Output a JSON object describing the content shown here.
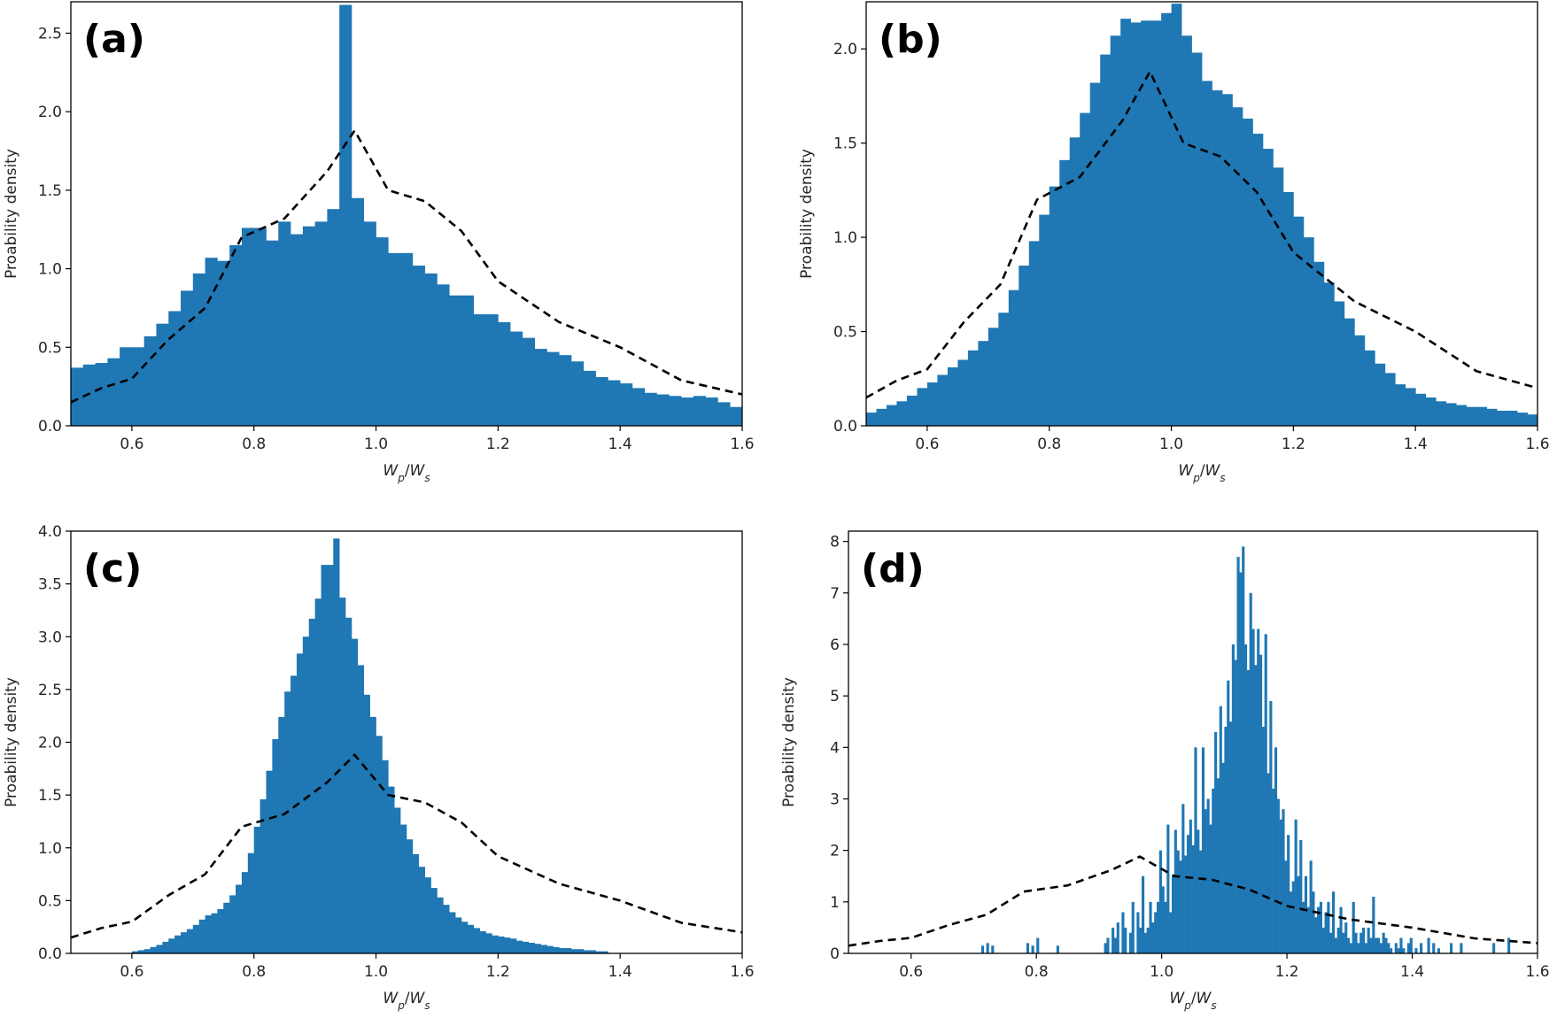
{
  "colors": {
    "bar": "#1f77b4",
    "reference_line": "#000000",
    "axes": "#000000",
    "text": "#262626"
  },
  "chart_data": [
    {
      "panel": "(a)",
      "type": "bar",
      "histogram": true,
      "xlabel": "W_p/W_s",
      "ylabel": "Proability density",
      "xlim": [
        0.5,
        1.6
      ],
      "ylim": [
        0,
        2.7
      ],
      "xticks": [
        "0.6",
        "0.8",
        "1.0",
        "1.2",
        "1.4",
        "1.6"
      ],
      "yticks": [
        "0.0",
        "0.5",
        "1.0",
        "1.5",
        "2.0",
        "2.5"
      ],
      "grid": false,
      "bin_edges_start": 0.5,
      "bin_width": 0.02,
      "values": [
        0.37,
        0.39,
        0.4,
        0.43,
        0.5,
        0.5,
        0.57,
        0.65,
        0.73,
        0.86,
        0.97,
        1.07,
        1.05,
        1.15,
        1.26,
        1.26,
        1.18,
        1.3,
        1.22,
        1.27,
        1.3,
        1.38,
        2.68,
        1.45,
        1.3,
        1.2,
        1.1,
        1.1,
        1.02,
        0.97,
        0.9,
        0.83,
        0.83,
        0.71,
        0.71,
        0.66,
        0.6,
        0.56,
        0.49,
        0.47,
        0.45,
        0.41,
        0.35,
        0.31,
        0.29,
        0.27,
        0.24,
        0.21,
        0.2,
        0.19,
        0.18,
        0.19,
        0.18,
        0.15,
        0.12
      ],
      "reference_curve": {
        "style": "dashed",
        "x": [
          0.5,
          0.55,
          0.6,
          0.66,
          0.72,
          0.78,
          0.85,
          0.92,
          0.965,
          1.02,
          1.08,
          1.14,
          1.2,
          1.3,
          1.4,
          1.5,
          1.6
        ],
        "y": [
          0.15,
          0.24,
          0.3,
          0.55,
          0.75,
          1.2,
          1.32,
          1.62,
          1.88,
          1.5,
          1.43,
          1.24,
          0.92,
          0.66,
          0.5,
          0.29,
          0.2
        ]
      }
    },
    {
      "panel": "(b)",
      "type": "bar",
      "histogram": true,
      "xlabel": "W_p/W_s",
      "ylabel": "Proability density",
      "xlim": [
        0.5,
        1.6
      ],
      "ylim": [
        0,
        2.25
      ],
      "xticks": [
        "0.6",
        "0.8",
        "1.0",
        "1.2",
        "1.4",
        "1.6"
      ],
      "yticks": [
        "0.0",
        "0.5",
        "1.0",
        "1.5",
        "2.0"
      ],
      "grid": false,
      "bin_edges_start": 0.5,
      "bin_width": 0.01667,
      "values": [
        0.07,
        0.09,
        0.11,
        0.13,
        0.16,
        0.2,
        0.23,
        0.27,
        0.31,
        0.35,
        0.4,
        0.45,
        0.52,
        0.6,
        0.72,
        0.85,
        0.98,
        1.12,
        1.27,
        1.41,
        1.53,
        1.66,
        1.82,
        1.97,
        2.07,
        2.16,
        2.14,
        2.15,
        2.15,
        2.19,
        2.24,
        2.07,
        1.98,
        1.83,
        1.78,
        1.76,
        1.69,
        1.63,
        1.55,
        1.47,
        1.37,
        1.24,
        1.11,
        1.0,
        0.87,
        0.76,
        0.66,
        0.57,
        0.48,
        0.4,
        0.33,
        0.28,
        0.22,
        0.2,
        0.17,
        0.15,
        0.13,
        0.12,
        0.11,
        0.1,
        0.1,
        0.09,
        0.08,
        0.08,
        0.07,
        0.06
      ],
      "reference_curve": {
        "style": "dashed",
        "x": [
          0.5,
          0.55,
          0.6,
          0.66,
          0.72,
          0.78,
          0.85,
          0.92,
          0.965,
          1.02,
          1.08,
          1.14,
          1.2,
          1.3,
          1.4,
          1.5,
          1.6
        ],
        "y": [
          0.15,
          0.24,
          0.3,
          0.55,
          0.75,
          1.2,
          1.32,
          1.62,
          1.88,
          1.5,
          1.43,
          1.24,
          0.92,
          0.66,
          0.5,
          0.29,
          0.2
        ]
      }
    },
    {
      "panel": "(c)",
      "type": "bar",
      "histogram": true,
      "xlabel": "W_p/W_s",
      "ylabel": "Proability density",
      "xlim": [
        0.5,
        1.6
      ],
      "ylim": [
        0,
        4.0
      ],
      "xticks": [
        "0.6",
        "0.8",
        "1.0",
        "1.2",
        "1.4",
        "1.6"
      ],
      "yticks": [
        "0.0",
        "0.5",
        "1.0",
        "1.5",
        "2.0",
        "2.5",
        "3.0",
        "3.5",
        "4.0"
      ],
      "grid": false,
      "bin_edges_start": 0.6,
      "bin_width": 0.01,
      "values": [
        0.02,
        0.03,
        0.04,
        0.06,
        0.08,
        0.11,
        0.14,
        0.17,
        0.2,
        0.23,
        0.27,
        0.32,
        0.36,
        0.38,
        0.42,
        0.48,
        0.55,
        0.65,
        0.77,
        0.95,
        1.2,
        1.46,
        1.73,
        2.03,
        2.24,
        2.48,
        2.63,
        2.84,
        3.0,
        3.17,
        3.36,
        3.68,
        3.68,
        3.93,
        3.37,
        3.18,
        2.98,
        2.73,
        2.45,
        2.24,
        2.06,
        1.83,
        1.58,
        1.38,
        1.22,
        1.08,
        0.94,
        0.82,
        0.72,
        0.62,
        0.53,
        0.46,
        0.39,
        0.34,
        0.3,
        0.27,
        0.24,
        0.21,
        0.19,
        0.17,
        0.16,
        0.15,
        0.14,
        0.12,
        0.11,
        0.1,
        0.09,
        0.08,
        0.07,
        0.06,
        0.05,
        0.05,
        0.04,
        0.04,
        0.03,
        0.03,
        0.02,
        0.02
      ],
      "reference_curve": {
        "style": "dashed",
        "x": [
          0.5,
          0.55,
          0.6,
          0.66,
          0.72,
          0.78,
          0.85,
          0.92,
          0.965,
          1.02,
          1.08,
          1.14,
          1.2,
          1.3,
          1.4,
          1.5,
          1.6
        ],
        "y": [
          0.15,
          0.24,
          0.3,
          0.55,
          0.75,
          1.2,
          1.32,
          1.62,
          1.88,
          1.5,
          1.43,
          1.24,
          0.92,
          0.66,
          0.5,
          0.29,
          0.2
        ]
      }
    },
    {
      "panel": "(d)",
      "type": "bar",
      "histogram": true,
      "xlabel": "W_p/W_s",
      "ylabel": "Proability density",
      "xlim": [
        0.5,
        1.6
      ],
      "ylim": [
        0,
        8.2
      ],
      "xticks": [
        "0.6",
        "0.8",
        "1.0",
        "1.2",
        "1.4",
        "1.6"
      ],
      "yticks": [
        "0",
        "1",
        "2",
        "3",
        "4",
        "5",
        "6",
        "7",
        "8"
      ],
      "grid": false,
      "bin_edges_start": 0.7,
      "bin_width": 0.004,
      "values": [
        0,
        0,
        0,
        0.15,
        0,
        0.2,
        0,
        0.15,
        0,
        0,
        0,
        0,
        0,
        0,
        0,
        0,
        0,
        0,
        0,
        0,
        0,
        0.2,
        0,
        0.15,
        0,
        0.3,
        0,
        0,
        0,
        0,
        0,
        0,
        0,
        0.15,
        0,
        0,
        0,
        0,
        0,
        0,
        0,
        0,
        0,
        0,
        0,
        0,
        0,
        0,
        0,
        0,
        0,
        0,
        0.2,
        0.3,
        0,
        0.5,
        0.3,
        0.6,
        0,
        0.8,
        0.5,
        0,
        0.4,
        1,
        0,
        0.8,
        0.5,
        1.5,
        0.4,
        0.5,
        1.0,
        0.6,
        0.8,
        1.0,
        2.0,
        1.3,
        1.0,
        2.5,
        0.8,
        1.5,
        2.4,
        2.0,
        1.8,
        2.9,
        1.9,
        2.3,
        2.6,
        2.1,
        4.0,
        2.4,
        2.0,
        4.0,
        2.8,
        3.0,
        2.5,
        3.2,
        4.3,
        3.4,
        4.8,
        3.7,
        4.4,
        5.3,
        4.5,
        6.0,
        5.7,
        7.7,
        7.4,
        7.9,
        6.0,
        5.5,
        7.0,
        6.3,
        5.6,
        6.3,
        5.8,
        4.4,
        6.2,
        3.5,
        4.9,
        3.2,
        4.0,
        3.0,
        2.6,
        2.8,
        1.8,
        2.3,
        1.2,
        1.4,
        2.6,
        1.5,
        2.2,
        1.0,
        1.5,
        0.9,
        1.8,
        1.2,
        0.7,
        0.9,
        1.0,
        0.5,
        0.8,
        1.0,
        0.4,
        1.2,
        0.3,
        0.5,
        0.9,
        0.4,
        0.6,
        0.3,
        0.2,
        1.0,
        0.4,
        0.2,
        0.4,
        0.5,
        0.2,
        0.5,
        0.3,
        1.1,
        0.3,
        0.3,
        0.2,
        0.4,
        0.3,
        0.2,
        0.1,
        0,
        0.2,
        0.1,
        0.3,
        0.1,
        0,
        0.2,
        0.3,
        0,
        0.1,
        0,
        0.2,
        0,
        0,
        0.3,
        0,
        0.2,
        0,
        0.1,
        0,
        0,
        0,
        0,
        0.2,
        0,
        0,
        0,
        0.2,
        0,
        0,
        0,
        0,
        0,
        0,
        0,
        0,
        0,
        0,
        0,
        0,
        0.2,
        0,
        0,
        0,
        0,
        0,
        0.3
      ],
      "reference_curve": {
        "style": "dashed",
        "x": [
          0.5,
          0.55,
          0.6,
          0.66,
          0.72,
          0.78,
          0.85,
          0.92,
          0.965,
          1.02,
          1.08,
          1.14,
          1.2,
          1.3,
          1.4,
          1.5,
          1.6
        ],
        "y": [
          0.15,
          0.24,
          0.3,
          0.55,
          0.75,
          1.2,
          1.32,
          1.62,
          1.88,
          1.5,
          1.43,
          1.24,
          0.92,
          0.66,
          0.5,
          0.29,
          0.2
        ]
      }
    }
  ]
}
